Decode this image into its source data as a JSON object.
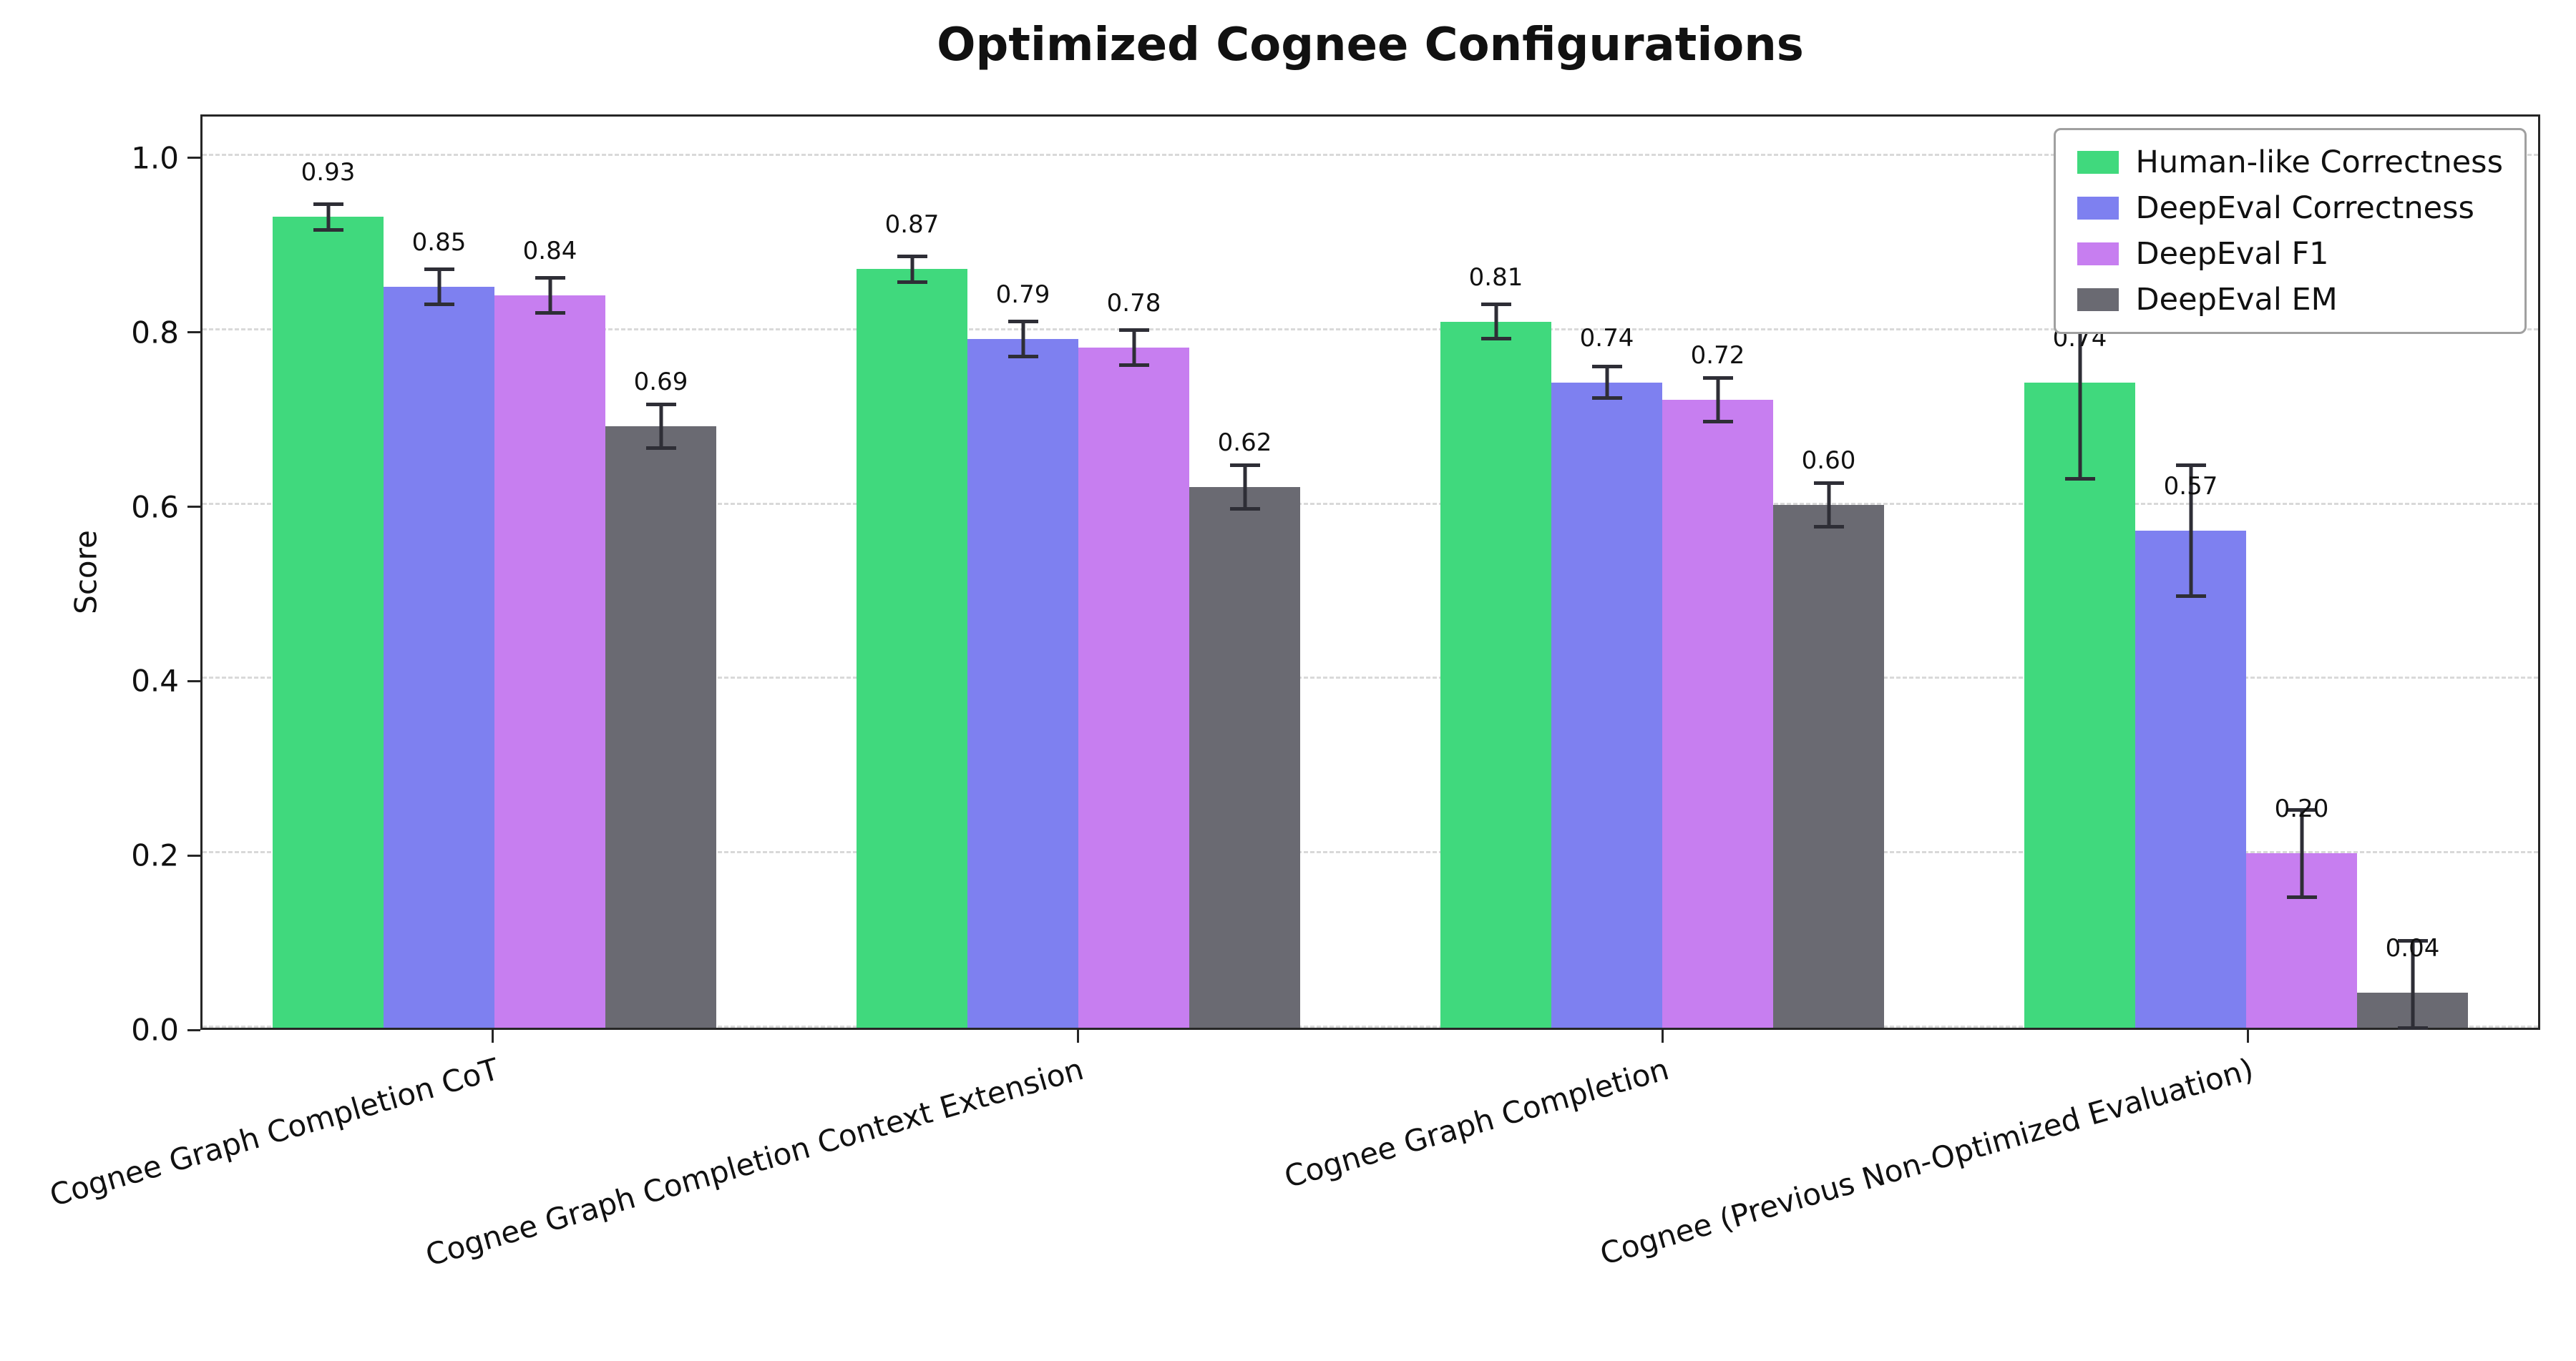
{
  "chart_data": {
    "type": "bar",
    "title": "Optimized Cognee Configurations",
    "xlabel": "",
    "ylabel": "Score",
    "ylim": [
      0,
      1.05
    ],
    "yticks": [
      0.0,
      0.2,
      0.4,
      0.6,
      0.8,
      1.0
    ],
    "grid": "horizontal-dashed",
    "gridline_color": "#d9d9d9",
    "error_bar_color": "#2e2e36",
    "legend_position": "upper-right",
    "categories": [
      "Cognee Graph Completion CoT",
      "Cognee Graph Completion Context Extension",
      "Cognee Graph Completion",
      "Cognee (Previous Non-Optimized Evaluation)"
    ],
    "series": [
      {
        "name": "Human-like Correctness",
        "color": "#40d97d",
        "values": [
          0.93,
          0.87,
          0.81,
          0.74
        ],
        "errors": [
          0.015,
          0.015,
          0.02,
          0.11
        ]
      },
      {
        "name": "DeepEval Correctness",
        "color": "#7e80f0",
        "values": [
          0.85,
          0.79,
          0.74,
          0.57
        ],
        "errors": [
          0.02,
          0.02,
          0.018,
          0.075
        ]
      },
      {
        "name": "DeepEval F1",
        "color": "#c77ef0",
        "values": [
          0.84,
          0.78,
          0.72,
          0.2
        ],
        "errors": [
          0.02,
          0.02,
          0.025,
          0.05
        ]
      },
      {
        "name": "DeepEval EM",
        "color": "#6a6a72",
        "values": [
          0.69,
          0.62,
          0.6,
          0.04
        ],
        "errors": [
          0.025,
          0.025,
          0.025,
          0.06
        ]
      }
    ]
  }
}
